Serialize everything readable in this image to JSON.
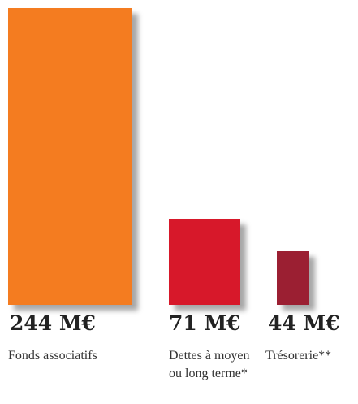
{
  "chart_data": {
    "type": "bar",
    "categories": [
      "Fonds associatifs",
      "Dettes à moyen ou long terme*",
      "Trésorerie**"
    ],
    "values": [
      244,
      71,
      44
    ],
    "value_labels": [
      "244 M€",
      "71 M€",
      "44 M€"
    ],
    "colors": [
      "#f47c20",
      "#d7182a",
      "#9b1f32"
    ]
  }
}
